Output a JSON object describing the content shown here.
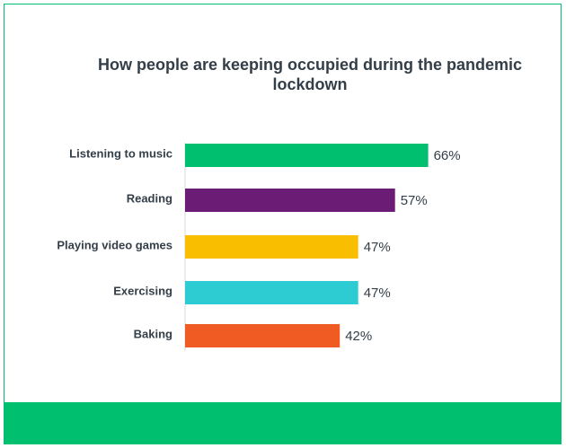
{
  "chart_data": {
    "type": "bar",
    "orientation": "horizontal",
    "title": "How people are keeping occupied during the pandemic lockdown",
    "categories": [
      "Listening to music",
      "Reading",
      "Playing video games",
      "Exercising",
      "Baking"
    ],
    "values": [
      66,
      57,
      47,
      47,
      42
    ],
    "value_labels": [
      "66%",
      "57%",
      "47%",
      "47%",
      "42%"
    ],
    "colors": [
      "#00bf6f",
      "#6b1d76",
      "#f9be00",
      "#2dccd3",
      "#f05b24"
    ],
    "unit": "%",
    "xlim": [
      0,
      100
    ],
    "grid": false,
    "legend": "none"
  },
  "colors": {
    "frame": "#00bf6f",
    "footer": "#00bf6f",
    "text": "#333e48",
    "axis": "#d9d9d9"
  }
}
